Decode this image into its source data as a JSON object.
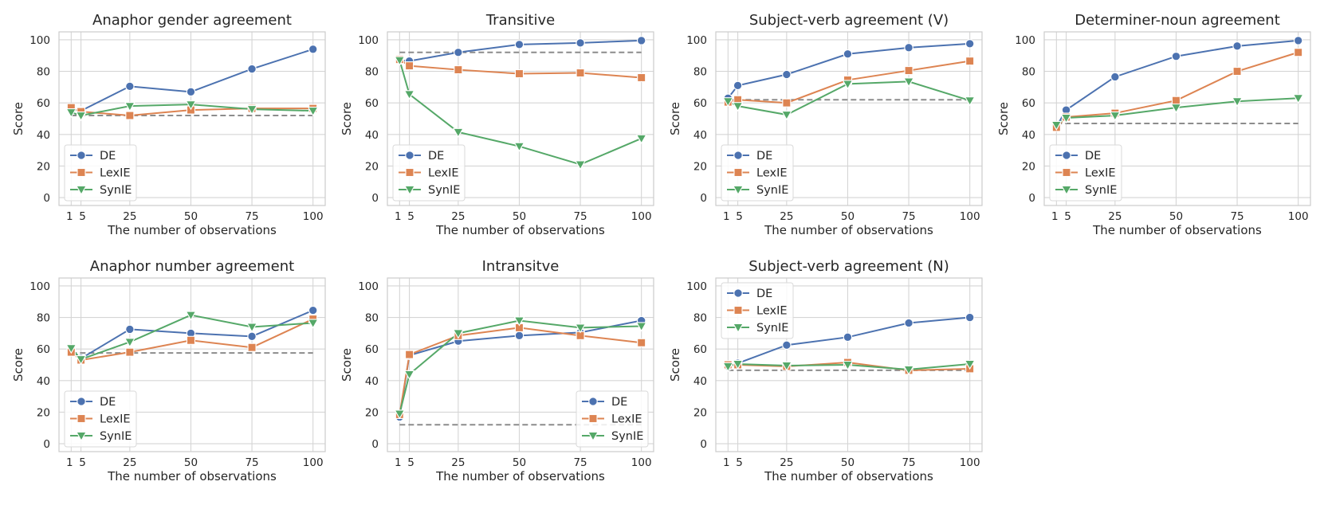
{
  "colors": {
    "DE": "#4c72b0",
    "LexIE": "#dd8452",
    "SynIE": "#55a868",
    "baseline": "#8c8c8c",
    "grid": "#d5d5d5"
  },
  "chart_data": [
    {
      "type": "line",
      "title": "Anaphor gender agreement",
      "xlabel": "The number of observations",
      "ylabel": "Score",
      "x": [
        1,
        5,
        25,
        50,
        75,
        100
      ],
      "xticks": [
        1,
        5,
        25,
        50,
        75,
        100
      ],
      "yticks": [
        0,
        20,
        40,
        60,
        80,
        100
      ],
      "xlim": [
        -4,
        105
      ],
      "ylim": [
        -5,
        105
      ],
      "baseline": 52,
      "legend": "lower-left",
      "series": [
        {
          "name": "DE",
          "marker": "circle",
          "values": [
            56,
            55,
            70.5,
            67,
            81.5,
            94
          ]
        },
        {
          "name": "LexIE",
          "marker": "square",
          "values": [
            57,
            54.5,
            52,
            55.5,
            56.5,
            56.5
          ]
        },
        {
          "name": "SynIE",
          "marker": "triangle",
          "values": [
            54,
            52,
            58,
            59,
            56,
            55
          ]
        }
      ]
    },
    {
      "type": "line",
      "title": "Transitive",
      "xlabel": "The number of observations",
      "ylabel": "Score",
      "x": [
        1,
        5,
        25,
        50,
        75,
        100
      ],
      "xticks": [
        1,
        5,
        25,
        50,
        75,
        100
      ],
      "yticks": [
        0,
        20,
        40,
        60,
        80,
        100
      ],
      "xlim": [
        -4,
        105
      ],
      "ylim": [
        -5,
        105
      ],
      "baseline": 92,
      "legend": "lower-left",
      "series": [
        {
          "name": "DE",
          "marker": "circle",
          "values": [
            87,
            86.5,
            92,
            97,
            98,
            99.5
          ]
        },
        {
          "name": "LexIE",
          "marker": "square",
          "values": [
            87.5,
            83.5,
            81,
            78.5,
            79,
            76
          ]
        },
        {
          "name": "SynIE",
          "marker": "triangle",
          "values": [
            87,
            65.5,
            41.5,
            32.5,
            21,
            37.5
          ]
        }
      ]
    },
    {
      "type": "line",
      "title": "Subject-verb agreement (V)",
      "xlabel": "The number of observations",
      "ylabel": "Score",
      "x": [
        1,
        5,
        25,
        50,
        75,
        100
      ],
      "xticks": [
        1,
        5,
        25,
        50,
        75,
        100
      ],
      "yticks": [
        0,
        20,
        40,
        60,
        80,
        100
      ],
      "xlim": [
        -4,
        105
      ],
      "ylim": [
        -5,
        105
      ],
      "baseline": 62,
      "legend": "lower-left",
      "series": [
        {
          "name": "DE",
          "marker": "circle",
          "values": [
            63,
            71,
            78,
            91,
            95,
            97.5
          ]
        },
        {
          "name": "LexIE",
          "marker": "square",
          "values": [
            60.5,
            62,
            60,
            74.5,
            80.5,
            86.5
          ]
        },
        {
          "name": "SynIE",
          "marker": "triangle",
          "values": [
            61,
            58,
            52.5,
            72,
            73.5,
            61.5
          ]
        }
      ]
    },
    {
      "type": "line",
      "title": "Determiner-noun agreement",
      "xlabel": "The number of observations",
      "ylabel": "Score",
      "x": [
        1,
        5,
        25,
        50,
        75,
        100
      ],
      "xticks": [
        1,
        5,
        25,
        50,
        75,
        100
      ],
      "yticks": [
        0,
        20,
        40,
        60,
        80,
        100
      ],
      "xlim": [
        -4,
        105
      ],
      "ylim": [
        -5,
        105
      ],
      "baseline": 47,
      "legend": "lower-left",
      "series": [
        {
          "name": "DE",
          "marker": "circle",
          "values": [
            45,
            55.5,
            76.5,
            89.5,
            96,
            99.5
          ]
        },
        {
          "name": "LexIE",
          "marker": "square",
          "values": [
            44.5,
            51,
            53.5,
            61.5,
            80,
            92
          ]
        },
        {
          "name": "SynIE",
          "marker": "triangle",
          "values": [
            46,
            50.5,
            52,
            57,
            61,
            63
          ]
        }
      ]
    },
    {
      "type": "line",
      "title": "Anaphor number agreement",
      "xlabel": "The number of observations",
      "ylabel": "Score",
      "x": [
        1,
        5,
        25,
        50,
        75,
        100
      ],
      "xticks": [
        1,
        5,
        25,
        50,
        75,
        100
      ],
      "yticks": [
        0,
        20,
        40,
        60,
        80,
        100
      ],
      "xlim": [
        -4,
        105
      ],
      "ylim": [
        -5,
        105
      ],
      "baseline": 57.5,
      "legend": "lower-left",
      "series": [
        {
          "name": "DE",
          "marker": "circle",
          "values": [
            60,
            54,
            72.5,
            70,
            68,
            84.5
          ]
        },
        {
          "name": "LexIE",
          "marker": "square",
          "values": [
            58,
            53,
            58,
            65.5,
            61,
            79
          ]
        },
        {
          "name": "SynIE",
          "marker": "triangle",
          "values": [
            60.5,
            53.5,
            64.5,
            81.5,
            74,
            76.5
          ]
        }
      ]
    },
    {
      "type": "line",
      "title": "Intransitve",
      "xlabel": "The number of observations",
      "ylabel": "Score",
      "x": [
        1,
        5,
        25,
        50,
        75,
        100
      ],
      "xticks": [
        1,
        5,
        25,
        50,
        75,
        100
      ],
      "yticks": [
        0,
        20,
        40,
        60,
        80,
        100
      ],
      "xlim": [
        -4,
        105
      ],
      "ylim": [
        -5,
        105
      ],
      "baseline": 12,
      "legend": "lower-right",
      "series": [
        {
          "name": "DE",
          "marker": "circle",
          "values": [
            17,
            56,
            65,
            68.5,
            70.5,
            78
          ]
        },
        {
          "name": "LexIE",
          "marker": "square",
          "values": [
            18.5,
            56.5,
            68.5,
            73.5,
            68.5,
            64
          ]
        },
        {
          "name": "SynIE",
          "marker": "triangle",
          "values": [
            19,
            44,
            70,
            78,
            73.5,
            74.5
          ]
        }
      ]
    },
    {
      "type": "line",
      "title": "Subject-verb agreement (N)",
      "xlabel": "The number of observations",
      "ylabel": "Score",
      "x": [
        1,
        5,
        25,
        50,
        75,
        100
      ],
      "xticks": [
        1,
        5,
        25,
        50,
        75,
        100
      ],
      "yticks": [
        0,
        20,
        40,
        60,
        80,
        100
      ],
      "xlim": [
        -4,
        105
      ],
      "ylim": [
        -5,
        105
      ],
      "baseline": 46.5,
      "legend": "upper-left",
      "series": [
        {
          "name": "DE",
          "marker": "circle",
          "values": [
            49,
            51,
            62.5,
            67.5,
            76.5,
            80
          ]
        },
        {
          "name": "LexIE",
          "marker": "square",
          "values": [
            50,
            50,
            49,
            51.5,
            46.5,
            47.5
          ]
        },
        {
          "name": "SynIE",
          "marker": "triangle",
          "values": [
            49,
            50.5,
            49.5,
            50,
            47,
            50.5
          ]
        }
      ]
    }
  ]
}
